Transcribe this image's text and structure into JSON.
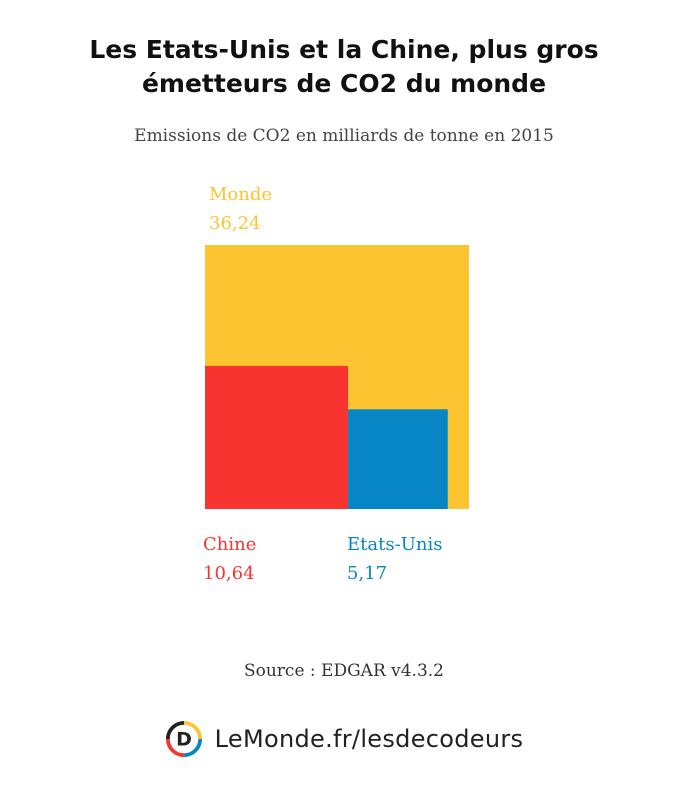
{
  "chart_data": {
    "type": "area-proportional squares",
    "title": "Les Etats-Unis et la Chine, plus gros émetteurs de CO2 du monde",
    "subtitle": "Emissions de CO2 en milliards de tonne en 2015",
    "series": [
      {
        "name": "Monde",
        "value": 36.24,
        "value_label": "36,24",
        "color": "#FDC431"
      },
      {
        "name": "Chine",
        "value": 10.64,
        "value_label": "10,64",
        "color": "#F73430"
      },
      {
        "name": "Etats-Unis",
        "value": 5.17,
        "value_label": "5,17",
        "color": "#0786C5"
      }
    ]
  },
  "source": "Source : EDGAR v4.3.2",
  "footer": {
    "brand_text": "LeMonde.fr/lesdecodeurs",
    "logo_letter": "D",
    "logo_icon": "les-decodeurs-logo-icon"
  }
}
